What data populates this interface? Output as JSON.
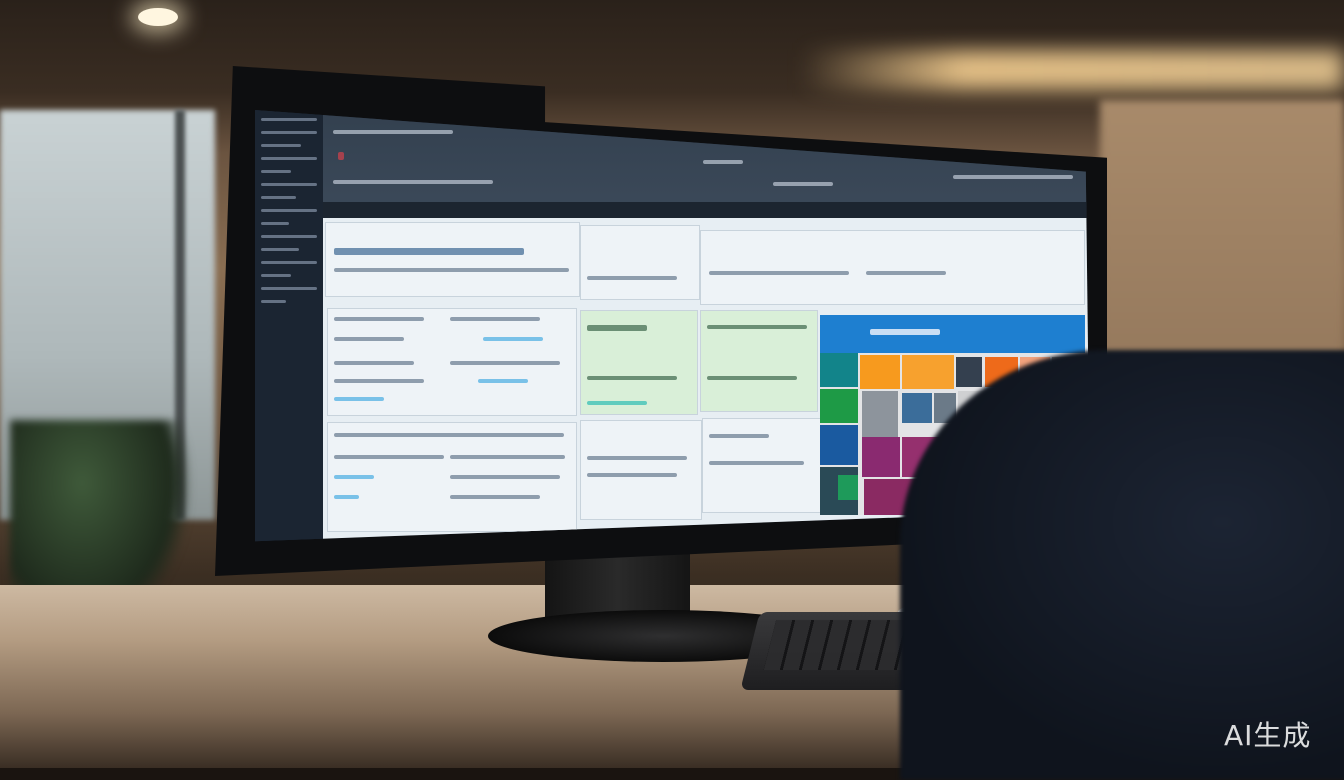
{
  "scene": {
    "colors": {
      "screen_dark": "#1f2a38",
      "tile_blue": "#1e7fd0",
      "tile_orange": "#f79a1e",
      "tile_purple": "#8a2a70",
      "tile_green": "#1e9a5a"
    }
  },
  "watermark": {
    "text": "AI生成"
  }
}
